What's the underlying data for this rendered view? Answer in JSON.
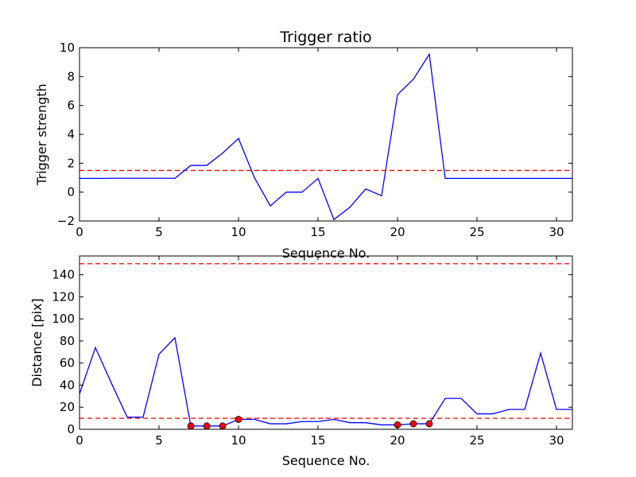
{
  "colors": {
    "line": "#0000ff",
    "reference": "#ff0000",
    "marker_fill": "#ff0000",
    "axes": "#000000"
  },
  "chart_data": [
    {
      "type": "line",
      "title": "Trigger ratio",
      "xlabel": "Sequence No.",
      "ylabel": "Trigger strength",
      "xlim": [
        0,
        31
      ],
      "ylim": [
        -2,
        10
      ],
      "xticks": [
        0,
        5,
        10,
        15,
        20,
        25,
        30
      ],
      "yticks": [
        -2,
        0,
        2,
        4,
        6,
        8,
        10
      ],
      "grid": false,
      "series": [
        {
          "x": [
            0,
            1,
            2,
            3,
            4,
            5,
            6,
            7,
            8,
            9,
            10,
            11,
            12,
            13,
            14,
            15,
            16,
            17,
            18,
            19,
            20,
            21,
            22,
            23,
            24,
            25,
            26,
            27,
            28,
            29,
            30,
            31
          ],
          "values": [
            0.95,
            0.95,
            0.96,
            0.96,
            0.96,
            0.96,
            0.96,
            1.85,
            1.85,
            2.7,
            3.72,
            1.0,
            -0.95,
            0.0,
            0.0,
            0.95,
            -1.9,
            -1.05,
            0.22,
            -0.25,
            6.75,
            7.82,
            9.55,
            0.95,
            0.95,
            0.95,
            0.95,
            0.95,
            0.95,
            0.95,
            0.95,
            0.95
          ]
        }
      ],
      "reference_lines": [
        {
          "y": 1.5,
          "style": "dashed"
        }
      ]
    },
    {
      "type": "line",
      "title": "",
      "xlabel": "Sequence No.",
      "ylabel": "Distance [pix]",
      "xlim": [
        0,
        31
      ],
      "ylim": [
        0,
        157
      ],
      "xticks": [
        0,
        5,
        10,
        15,
        20,
        25,
        30
      ],
      "yticks": [
        0,
        20,
        40,
        60,
        80,
        100,
        120,
        140
      ],
      "grid": false,
      "series": [
        {
          "x": [
            0,
            1,
            2,
            3,
            4,
            5,
            6,
            7,
            8,
            9,
            10,
            11,
            12,
            13,
            14,
            15,
            16,
            17,
            18,
            19,
            20,
            21,
            22,
            23,
            24,
            25,
            26,
            27,
            28,
            29,
            30,
            31
          ],
          "values": [
            32,
            74,
            42,
            11,
            11,
            68,
            83,
            3,
            3,
            3,
            9,
            9,
            5,
            5,
            7,
            7,
            9,
            6,
            6,
            4,
            4,
            5,
            5,
            28,
            28,
            14,
            14,
            18,
            18,
            69,
            18,
            18
          ]
        }
      ],
      "highlighted_points": {
        "x": [
          7,
          8,
          9,
          10,
          20,
          21,
          22
        ],
        "values": [
          3,
          3,
          3,
          9,
          4,
          5,
          5
        ]
      },
      "reference_lines": [
        {
          "y": 10,
          "style": "dashed"
        },
        {
          "y": 150,
          "style": "dashed"
        }
      ]
    }
  ]
}
